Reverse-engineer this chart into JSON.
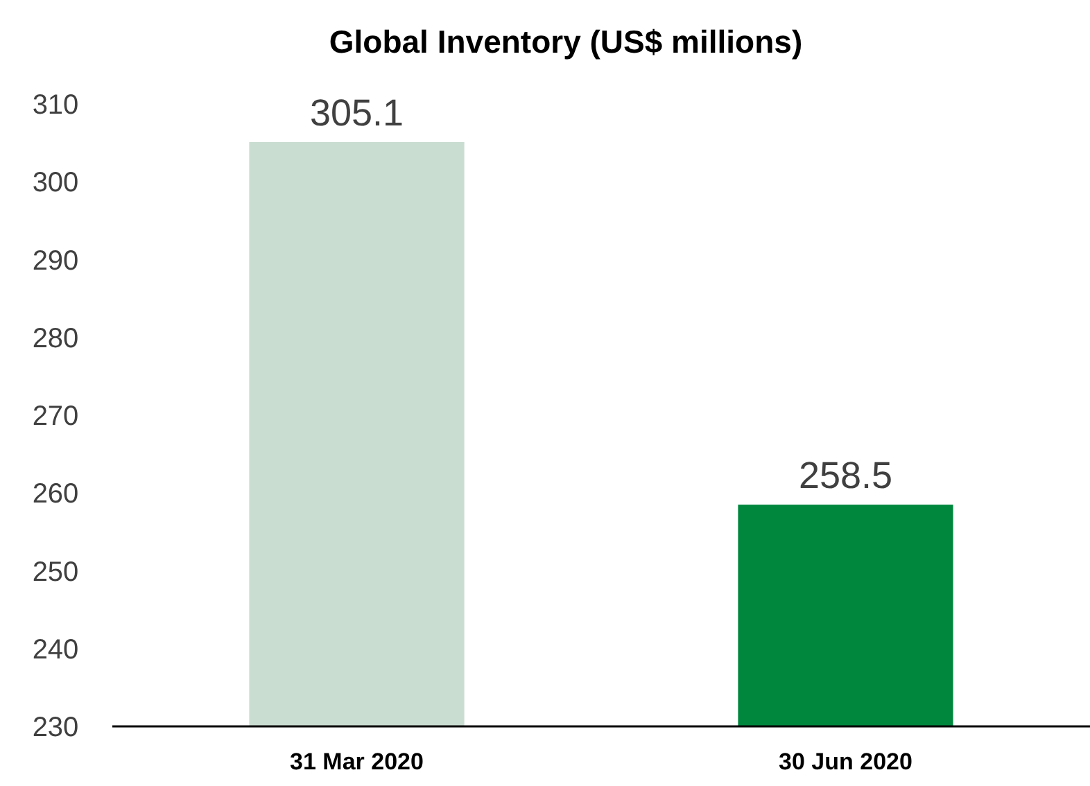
{
  "chart_data": {
    "type": "bar",
    "title": "Global Inventory (US$ millions)",
    "categories": [
      "31 Mar 2020",
      "30 Jun 2020"
    ],
    "values": [
      305.1,
      258.5
    ],
    "colors": [
      "#c9ddd0",
      "#00873e"
    ],
    "ylim": [
      230,
      310
    ],
    "yticks": [
      230,
      240,
      250,
      260,
      270,
      280,
      290,
      300,
      310
    ],
    "data_labels": true
  }
}
